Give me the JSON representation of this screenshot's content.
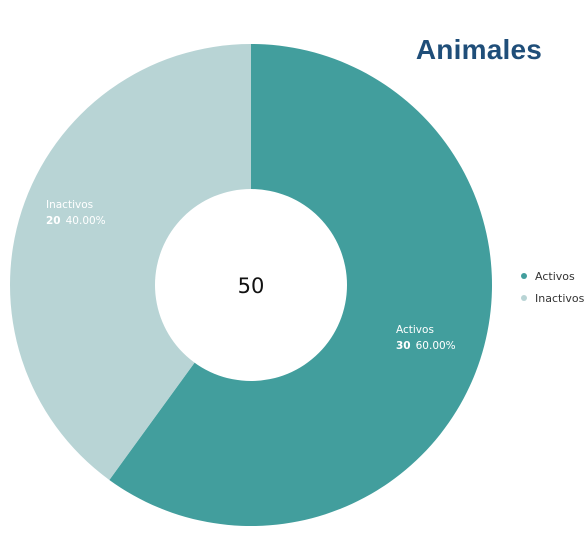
{
  "title": "Animales",
  "title_color": "#1f4e79",
  "chart_data": {
    "type": "pie",
    "donut": true,
    "total_label": "50",
    "slices": [
      {
        "label": "Activos",
        "value": 30,
        "percent": "60.00%",
        "color": "#429e9d"
      },
      {
        "label": "Inactivos",
        "value": 20,
        "percent": "40.00%",
        "color": "#b8d4d5"
      }
    ],
    "legend": {
      "position": "right",
      "entries": [
        "Activos",
        "Inactivos"
      ]
    }
  }
}
